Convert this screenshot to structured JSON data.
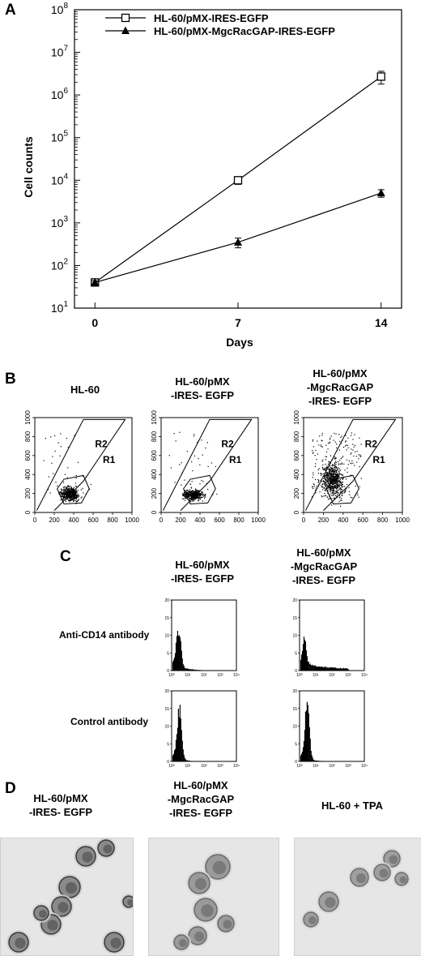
{
  "panels": {
    "A": {
      "label": "A",
      "chart_data": {
        "type": "line",
        "xlabel": "Days",
        "ylabel": "Cell counts",
        "x": [
          0,
          7,
          14
        ],
        "x_ticks": [
          "0",
          "7",
          "14"
        ],
        "y_scale": "log",
        "ylim": [
          10,
          100000000
        ],
        "y_ticks": [
          {
            "base": "10",
            "exp": "8"
          },
          {
            "base": "10",
            "exp": "7"
          },
          {
            "base": "10",
            "exp": "6"
          },
          {
            "base": "10",
            "exp": "5"
          },
          {
            "base": "10",
            "exp": "4"
          },
          {
            "base": "10",
            "exp": "3"
          },
          {
            "base": "10",
            "exp": "2"
          },
          {
            "base": "10",
            "exp": "1"
          }
        ],
        "legend_position": "top-left",
        "series": [
          {
            "name": "HL-60/pMX-IRES-EGFP",
            "marker": "open-square",
            "values": [
              40,
              10000,
              2700000
            ],
            "error": [
              4,
              2000,
              900000
            ]
          },
          {
            "name": "HL-60/pMX-MgcRacGAP-IRES-EGFP",
            "marker": "filled-triangle",
            "values": [
              40,
              350,
              5000
            ],
            "error": [
              4,
              90,
              1000
            ]
          }
        ]
      }
    },
    "B": {
      "label": "B",
      "headers": [
        [
          "HL-60"
        ],
        [
          "HL-60/pMX",
          "-IRES- EGFP"
        ],
        [
          "HL-60/pMX",
          "-MgcRacGAP",
          "-IRES- EGFP"
        ]
      ],
      "x_ticks": [
        "0",
        "200",
        "400",
        "600",
        "800",
        "1000"
      ],
      "y_ticks": [
        "0",
        "200",
        "400",
        "600",
        "800",
        "1000"
      ],
      "gates": [
        "R2",
        "R1"
      ]
    },
    "C": {
      "label": "C",
      "headers": [
        [
          "HL-60/pMX",
          "-IRES- EGFP"
        ],
        [
          "HL-60/pMX",
          "-MgcRacGAP",
          "-IRES- EGFP"
        ]
      ],
      "rows": [
        "Anti-CD14  antibody",
        "Control  antibody"
      ],
      "y_ticks": [
        "0",
        "5",
        "10",
        "15",
        "20"
      ],
      "x_ticks": [
        "10⁰",
        "10¹",
        "10²",
        "10³",
        "10⁴"
      ]
    },
    "D": {
      "label": "D",
      "headers": [
        [
          "HL-60/pMX",
          "-IRES- EGFP"
        ],
        [
          "HL-60/pMX",
          "-MgcRacGAP",
          "-IRES- EGFP"
        ],
        [
          "HL-60 + TPA"
        ]
      ]
    }
  }
}
